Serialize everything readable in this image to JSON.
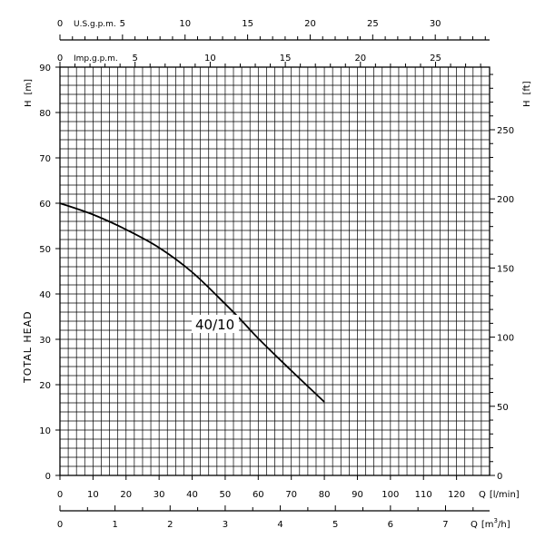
{
  "chart_data": {
    "type": "line",
    "title": "",
    "series": [
      {
        "name": "40/10",
        "x": [
          0,
          10,
          20,
          30,
          40,
          50,
          55,
          60,
          70,
          80
        ],
        "y": [
          60,
          57.5,
          54.2,
          50.2,
          44.8,
          37.8,
          34.1,
          30.2,
          23.1,
          16.2
        ]
      }
    ],
    "bottom_axis": {
      "label": "Q [l/min]",
      "label_prefix": "Q",
      "label_unit": "[l/min]",
      "min": 0,
      "max": 130,
      "ticks": [
        0,
        10,
        20,
        30,
        40,
        50,
        60,
        70,
        80,
        90,
        100,
        110,
        120
      ]
    },
    "lower_axis_m3h": {
      "label_prefix": "Q",
      "label_unit_pre": "[m",
      "label_unit_sup": "3",
      "label_unit_post": "/h]",
      "ticks": [
        0,
        1,
        2,
        3,
        4,
        5,
        6,
        7
      ]
    },
    "top_axis_usgpm": {
      "label": "U.S.g.p.m.",
      "ticks": [
        0,
        5,
        10,
        15,
        20,
        25,
        30
      ]
    },
    "top_axis_impgpm": {
      "label": "Imp.g.p.m.",
      "ticks": [
        0,
        5,
        10,
        15,
        20,
        25
      ]
    },
    "left_axis": {
      "label": "H [m]",
      "label_h": "H",
      "label_unit": "[m]",
      "min": 0,
      "max": 90,
      "ticks": [
        0,
        10,
        20,
        30,
        40,
        50,
        60,
        70,
        80,
        90
      ]
    },
    "right_axis": {
      "label": "H [ft]",
      "label_h": "H",
      "label_unit": "[ft]",
      "ticks": [
        0,
        50,
        100,
        150,
        200,
        250
      ]
    },
    "side_title": "TOTAL HEAD",
    "grid": true,
    "colors": {
      "line": "#000000",
      "grid": "#000000",
      "background": "#ffffff"
    }
  }
}
